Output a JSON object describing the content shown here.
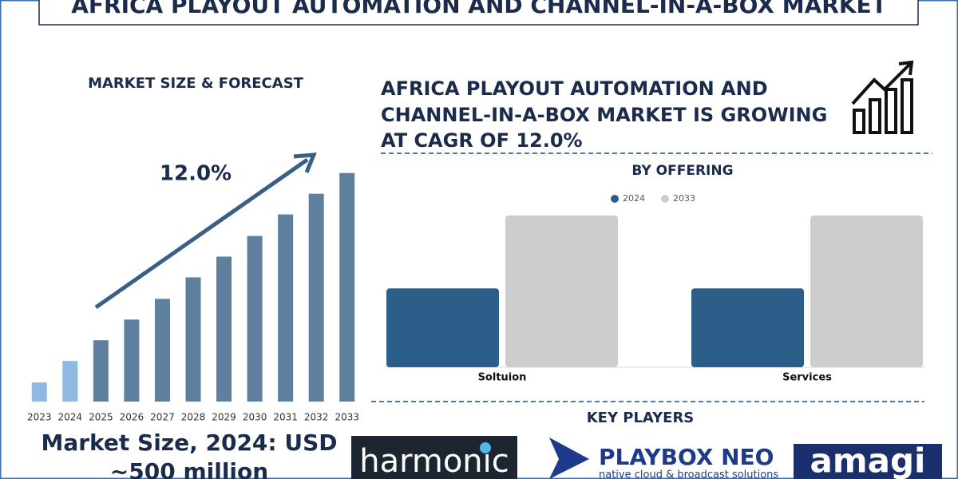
{
  "title": "AFRICA PLAYOUT AUTOMATION AND CHANNEL-IN-A-BOX MARKET",
  "headline": [
    "AFRICA PLAYOUT AUTOMATION AND",
    "CHANNEL-IN-A-BOX MARKET IS GROWING",
    "AT CAGR OF 12.0%"
  ],
  "market_size": [
    "Market Size, 2024: USD",
    "~500 million"
  ],
  "key_players": {
    "title": "KEY PLAYERS",
    "logos": [
      "harmonic",
      "PLAYBOX NEO",
      "native cloud & broadcast solutions",
      "amagi"
    ]
  },
  "chart_data": [
    {
      "type": "bar",
      "title": "MARKET SIZE & FORECAST",
      "annotation": "12.0%",
      "categories": [
        "2023",
        "2024",
        "2025",
        "2026",
        "2027",
        "2028",
        "2029",
        "2030",
        "2031",
        "2032",
        "2033"
      ],
      "values": [
        235,
        500,
        755,
        1010,
        1265,
        1530,
        1785,
        2040,
        2305,
        2560,
        2815
      ],
      "colors": [
        "#8fb9e3",
        "#8fb9e3",
        "#5f7f9e",
        "#5f7f9e",
        "#5f7f9e",
        "#5f7f9e",
        "#5f7f9e",
        "#5f7f9e",
        "#5f7f9e",
        "#5f7f9e",
        "#5f7f9e"
      ],
      "ylim": [
        0,
        2950
      ]
    },
    {
      "type": "grouped-bar",
      "title": "BY OFFERING",
      "categories": [
        "Soltuion",
        "Services"
      ],
      "series": [
        {
          "name": "2024",
          "color": "#2b5f8a",
          "values": [
            52,
            52
          ]
        },
        {
          "name": "2033",
          "color": "#cdcdcd",
          "values": [
            100,
            100
          ]
        }
      ],
      "ylim": [
        0,
        100
      ]
    }
  ]
}
